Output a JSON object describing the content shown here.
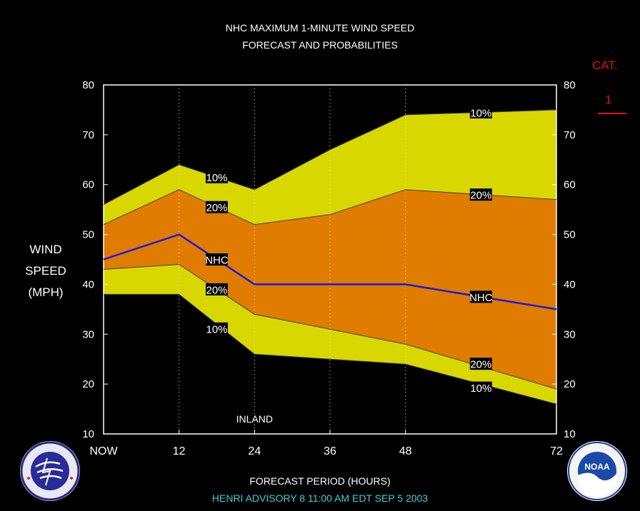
{
  "title_line1": "NHC MAXIMUM 1-MINUTE WIND SPEED",
  "title_line2": "FORECAST AND PROBABILITIES",
  "ylabel_lines": [
    "WIND",
    "SPEED",
    "(MPH)"
  ],
  "xlabel": "FORECAST PERIOD (HOURS)",
  "footer": "HENRI   ADVISORY  8  11:00  AM  EDT  SEP  5  2003",
  "category": {
    "label": "CAT.",
    "value": "1"
  },
  "logos": {
    "left": "NWS seal",
    "right": "NOAA",
    "right_text": "NOAA"
  },
  "colors": {
    "background": "#000000",
    "band_10": "#d8d800",
    "band_20": "#e07c00",
    "nhc_line": "#1818e6",
    "category": "#e01010",
    "footer": "#3fd0d0"
  },
  "chart_data": {
    "type": "area",
    "x": [
      0,
      12,
      24,
      36,
      48,
      72
    ],
    "xtick_labels": [
      "NOW",
      "12",
      "24",
      "36",
      "48",
      "72"
    ],
    "ylim": [
      10,
      80
    ],
    "yticks": [
      10,
      20,
      30,
      40,
      50,
      60,
      70,
      80
    ],
    "series": [
      {
        "name": "10%",
        "values": [
          56,
          64,
          59,
          67,
          74,
          75
        ]
      },
      {
        "name": "20%",
        "values": [
          52,
          59,
          52,
          54,
          59,
          57
        ]
      },
      {
        "name": "NHC",
        "values": [
          45,
          50,
          40,
          40,
          40,
          35
        ]
      },
      {
        "name": "20%",
        "values": [
          43,
          44,
          34,
          31,
          28,
          19
        ]
      },
      {
        "name": "10%",
        "values": [
          38,
          38,
          26,
          25,
          24,
          16
        ]
      }
    ],
    "annotations": [
      "INLAND"
    ],
    "grid": "dotted vertical lines at 12, 24, 36, 48"
  }
}
